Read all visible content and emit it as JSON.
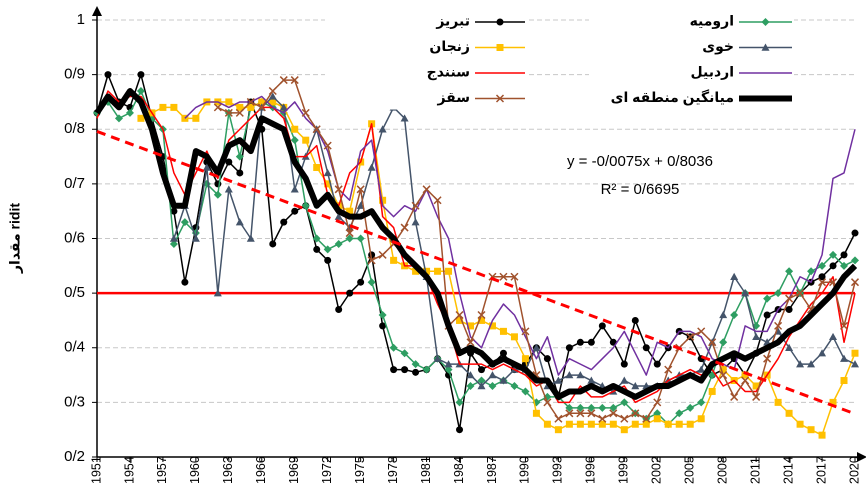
{
  "chart_data": {
    "type": "line",
    "ylabel": "مقدار ridit",
    "x": [
      1951,
      1952,
      1953,
      1954,
      1955,
      1956,
      1957,
      1958,
      1959,
      1960,
      1961,
      1962,
      1963,
      1964,
      1965,
      1966,
      1967,
      1968,
      1969,
      1970,
      1971,
      1972,
      1973,
      1974,
      1975,
      1976,
      1977,
      1978,
      1979,
      1980,
      1981,
      1982,
      1983,
      1984,
      1985,
      1986,
      1987,
      1988,
      1989,
      1990,
      1991,
      1992,
      1993,
      1994,
      1995,
      1996,
      1997,
      1998,
      1999,
      2000,
      2001,
      2002,
      2003,
      2004,
      2005,
      2006,
      2007,
      2008,
      2009,
      2010,
      2011,
      2012,
      2013,
      2014,
      2015,
      2016,
      2017,
      2018,
      2019,
      2020
    ],
    "xlim": [
      1951,
      2020
    ],
    "xticks": [
      1951,
      1954,
      1957,
      1960,
      1963,
      1966,
      1969,
      1972,
      1975,
      1978,
      1981,
      1984,
      1987,
      1990,
      1993,
      1996,
      1999,
      2002,
      2005,
      2008,
      2011,
      2014,
      2017,
      2020
    ],
    "ylim": [
      0.2,
      1
    ],
    "yticks": [
      {
        "value": 0.2,
        "label": "0/2"
      },
      {
        "value": 0.3,
        "label": "0/3"
      },
      {
        "value": 0.4,
        "label": "0/4"
      },
      {
        "value": 0.5,
        "label": "0/5"
      },
      {
        "value": 0.6,
        "label": "0/6"
      },
      {
        "value": 0.7,
        "label": "0/7"
      },
      {
        "value": 0.8,
        "label": "0/8"
      },
      {
        "value": 0.9,
        "label": "0/9"
      },
      1
    ],
    "grid": true,
    "series": [
      {
        "name": "تبریز",
        "color": "#000000",
        "marker": "circle",
        "linewidth": 1.5,
        "values": [
          0.83,
          0.9,
          0.85,
          0.84,
          0.9,
          0.82,
          0.75,
          0.65,
          0.52,
          0.62,
          0.74,
          0.7,
          0.74,
          0.72,
          0.85,
          0.8,
          0.59,
          0.63,
          0.65,
          0.66,
          0.58,
          0.56,
          0.47,
          0.5,
          0.52,
          0.57,
          0.44,
          0.36,
          0.36,
          0.355,
          0.36,
          0.38,
          0.35,
          0.25,
          0.39,
          0.36,
          0.37,
          0.39,
          0.36,
          0.37,
          0.4,
          0.38,
          0.31,
          0.4,
          0.41,
          0.41,
          0.44,
          0.41,
          0.37,
          0.45,
          0.4,
          0.37,
          0.4,
          0.43,
          0.42,
          0.38,
          0.35,
          0.36,
          0.38,
          0.35,
          0.39,
          0.46,
          0.47,
          0.47,
          0.5,
          0.52,
          0.53,
          0.55,
          0.57,
          0.61
        ]
      },
      {
        "name": "ارومیه",
        "color": "#2e9e62",
        "marker": "diamond",
        "linewidth": 1.5,
        "values": [
          0.83,
          0.85,
          0.82,
          0.83,
          0.87,
          0.82,
          0.8,
          0.59,
          0.63,
          0.61,
          0.7,
          0.68,
          0.83,
          0.75,
          0.84,
          0.85,
          0.84,
          0.83,
          0.78,
          0.66,
          0.6,
          0.58,
          0.59,
          0.6,
          0.6,
          0.52,
          0.46,
          0.4,
          0.39,
          0.37,
          0.36,
          0.38,
          0.36,
          0.3,
          0.33,
          0.34,
          0.33,
          0.34,
          0.33,
          0.32,
          0.3,
          0.31,
          0.31,
          0.29,
          0.29,
          0.29,
          0.29,
          0.29,
          0.3,
          0.28,
          0.27,
          0.28,
          0.26,
          0.28,
          0.29,
          0.3,
          0.35,
          0.41,
          0.46,
          0.5,
          0.44,
          0.49,
          0.5,
          0.54,
          0.5,
          0.54,
          0.55,
          0.57,
          0.55,
          0.56
        ]
      },
      {
        "name": "زنجان",
        "color": "#ffc000",
        "marker": "square",
        "linewidth": 1.5,
        "values": [
          null,
          null,
          null,
          null,
          0.82,
          0.83,
          0.84,
          0.84,
          0.82,
          0.82,
          0.85,
          0.85,
          0.85,
          0.84,
          0.84,
          0.85,
          0.85,
          0.84,
          0.8,
          0.78,
          0.73,
          0.7,
          0.66,
          0.65,
          0.74,
          0.81,
          0.67,
          0.56,
          0.55,
          0.54,
          0.54,
          0.54,
          0.54,
          0.45,
          0.44,
          0.45,
          0.44,
          0.43,
          0.42,
          0.38,
          0.28,
          0.26,
          0.25,
          0.26,
          0.26,
          0.26,
          0.26,
          0.26,
          0.25,
          0.26,
          0.26,
          0.27,
          0.26,
          0.26,
          0.26,
          0.27,
          0.32,
          0.36,
          0.34,
          0.35,
          0.33,
          0.35,
          0.3,
          0.28,
          0.26,
          0.25,
          0.24,
          0.3,
          0.34,
          0.39
        ]
      },
      {
        "name": "خوی",
        "color": "#44546a",
        "marker": "triangle",
        "linewidth": 1.5,
        "values": [
          null,
          null,
          null,
          null,
          null,
          null,
          null,
          0.6,
          0.66,
          0.6,
          0.73,
          0.5,
          0.69,
          0.63,
          0.6,
          0.84,
          0.86,
          0.84,
          0.69,
          0.75,
          0.8,
          0.72,
          0.64,
          0.62,
          0.66,
          0.73,
          0.8,
          0.84,
          0.82,
          0.63,
          0.53,
          0.38,
          0.37,
          0.37,
          0.35,
          0.33,
          0.35,
          0.34,
          0.36,
          0.36,
          0.4,
          0.33,
          0.34,
          0.35,
          0.35,
          0.34,
          0.33,
          0.32,
          0.34,
          0.33,
          0.33,
          0.33,
          0.34,
          0.35,
          0.35,
          0.36,
          0.41,
          0.46,
          0.53,
          0.5,
          0.42,
          0.41,
          0.43,
          0.4,
          0.37,
          0.37,
          0.39,
          0.42,
          0.38,
          0.37
        ]
      },
      {
        "name": "سنندج",
        "color": "#ff0000",
        "marker": "none",
        "linewidth": 1.5,
        "values": [
          0.82,
          0.87,
          0.85,
          0.86,
          0.86,
          0.83,
          0.8,
          0.72,
          0.68,
          0.72,
          0.76,
          0.71,
          0.78,
          0.8,
          0.82,
          0.84,
          0.84,
          0.82,
          0.75,
          0.75,
          0.77,
          0.68,
          0.66,
          0.72,
          0.74,
          0.81,
          0.64,
          0.62,
          0.55,
          0.55,
          0.53,
          0.48,
          0.44,
          0.37,
          0.37,
          0.37,
          0.36,
          0.37,
          0.36,
          0.35,
          0.33,
          0.34,
          0.3,
          0.3,
          0.33,
          0.31,
          0.31,
          0.32,
          0.33,
          0.3,
          0.31,
          0.32,
          0.34,
          0.35,
          0.36,
          0.35,
          0.36,
          0.33,
          0.34,
          0.32,
          0.32,
          0.35,
          0.38,
          0.42,
          0.45,
          0.48,
          0.5,
          0.53,
          0.41,
          0.5
        ]
      },
      {
        "name": "اردبیل",
        "color": "#7030a0",
        "marker": "none",
        "linewidth": 1.5,
        "values": [
          null,
          null,
          null,
          null,
          null,
          null,
          null,
          null,
          0.82,
          0.84,
          0.85,
          0.85,
          0.84,
          0.85,
          0.85,
          0.86,
          0.84,
          0.83,
          0.85,
          0.82,
          0.8,
          0.76,
          0.69,
          0.67,
          0.76,
          0.78,
          0.66,
          0.64,
          0.66,
          0.65,
          0.69,
          0.64,
          0.6,
          0.5,
          0.42,
          0.4,
          0.45,
          0.48,
          0.46,
          0.42,
          0.38,
          0.42,
          0.35,
          0.38,
          0.37,
          0.36,
          0.38,
          0.4,
          0.43,
          0.39,
          0.35,
          0.41,
          0.4,
          0.43,
          0.43,
          0.42,
          0.38,
          0.37,
          0.36,
          0.44,
          0.43,
          0.43,
          0.47,
          0.49,
          0.53,
          0.52,
          0.57,
          0.71,
          0.72,
          0.8
        ]
      },
      {
        "name": "سقز",
        "color": "#a0522d",
        "marker": "x",
        "linewidth": 1.5,
        "values": [
          null,
          null,
          null,
          null,
          null,
          null,
          null,
          null,
          null,
          null,
          null,
          0.84,
          0.83,
          0.83,
          0.85,
          0.84,
          0.87,
          0.89,
          0.89,
          0.83,
          0.8,
          0.77,
          0.69,
          0.61,
          0.69,
          0.56,
          0.57,
          0.59,
          0.62,
          0.66,
          0.69,
          0.67,
          0.44,
          0.46,
          0.41,
          0.46,
          0.53,
          0.53,
          0.53,
          0.43,
          0.35,
          0.3,
          0.27,
          0.28,
          0.28,
          0.28,
          0.27,
          0.28,
          0.27,
          0.28,
          0.27,
          0.3,
          0.36,
          0.4,
          0.42,
          0.43,
          0.41,
          0.35,
          0.31,
          0.34,
          0.31,
          0.38,
          0.44,
          0.49,
          0.5,
          0.47,
          0.52,
          0.52,
          0.44,
          0.52
        ]
      },
      {
        "name": "میانگین منطقه ای",
        "color": "#000000",
        "marker": "none",
        "linewidth": 6,
        "values": [
          0.83,
          0.86,
          0.84,
          0.87,
          0.85,
          0.8,
          0.72,
          0.66,
          0.66,
          0.76,
          0.75,
          0.72,
          0.77,
          0.78,
          0.76,
          0.82,
          0.81,
          0.8,
          0.74,
          0.71,
          0.66,
          0.68,
          0.65,
          0.64,
          0.64,
          0.65,
          0.62,
          0.6,
          0.57,
          0.55,
          0.53,
          0.5,
          0.44,
          0.39,
          0.4,
          0.39,
          0.37,
          0.38,
          0.37,
          0.36,
          0.34,
          0.34,
          0.31,
          0.32,
          0.32,
          0.33,
          0.32,
          0.33,
          0.32,
          0.31,
          0.32,
          0.33,
          0.33,
          0.34,
          0.35,
          0.34,
          0.37,
          0.38,
          0.39,
          0.38,
          0.39,
          0.4,
          0.41,
          0.43,
          0.44,
          0.46,
          0.48,
          0.5,
          0.53,
          0.55
        ]
      }
    ],
    "trendline": {
      "x": [
        1951,
        2020
      ],
      "values": [
        0.796,
        0.279
      ],
      "color": "#ff0000"
    },
    "hline": {
      "value": 0.5,
      "color": "#ff0000"
    },
    "annotations": [
      "y = -0/0075x + 0/8036",
      "R² = 0/6695"
    ]
  }
}
